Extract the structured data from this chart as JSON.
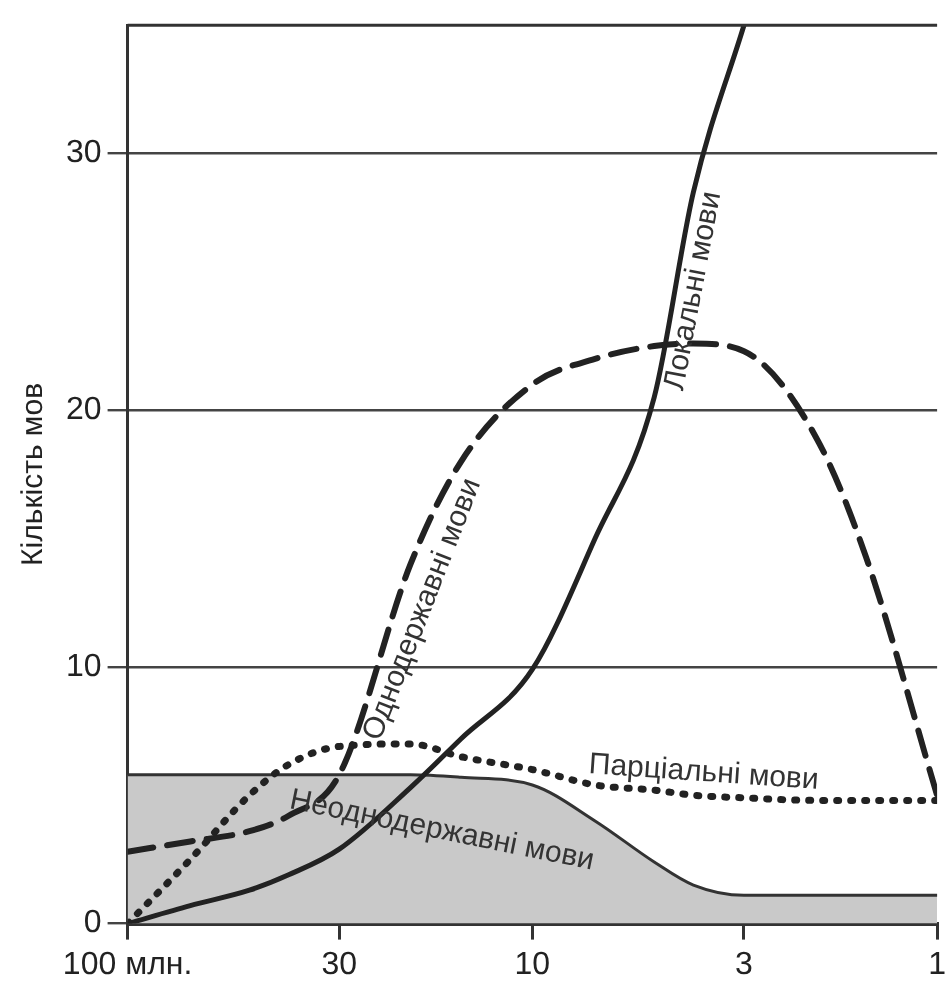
{
  "chart_data": {
    "type": "line",
    "ylabel": "Кількість мов",
    "x": [
      100,
      70,
      50,
      40,
      30,
      20,
      15,
      10,
      7,
      5,
      4,
      3,
      2,
      1.5,
      1
    ],
    "xlim": [
      100,
      1
    ],
    "log": "x",
    "xticks": [
      {
        "value": 100,
        "label": "100 млн."
      },
      30,
      10,
      3,
      1
    ],
    "ylim": [
      0,
      35
    ],
    "yticks": [
      0,
      10,
      20,
      30
    ],
    "grid": "y",
    "legend": false,
    "series": [
      {
        "name": "Неоднодержавні мови",
        "type": "area",
        "color": "#c9c9c9",
        "line_style": "solid",
        "values": [
          5.8,
          5.8,
          5.8,
          5.8,
          5.8,
          5.8,
          5.7,
          5.4,
          4.0,
          2.4,
          1.5,
          1.1,
          1.1,
          1.1,
          1.1
        ]
      },
      {
        "name": "Локальні мови",
        "color": "#222222",
        "line_style": "solid",
        "x": [
          100,
          70,
          50,
          40,
          30,
          20,
          15,
          10,
          7,
          5,
          4,
          3
        ],
        "values": [
          0,
          0.7,
          1.3,
          1.9,
          2.9,
          5.3,
          7.2,
          9.9,
          15,
          20.5,
          28.5,
          35
        ]
      },
      {
        "name": "Однодержавні мови",
        "color": "#222222",
        "line_style": "dashed",
        "values": [
          2.8,
          3.2,
          3.6,
          4.2,
          5.8,
          14,
          18,
          21,
          22,
          22.5,
          22.6,
          22.3,
          19,
          14.3,
          5
        ]
      },
      {
        "name": "Парціальні мови",
        "color": "#222222",
        "line_style": "dotted",
        "values": [
          0,
          2.5,
          5,
          6.2,
          6.9,
          7,
          6.5,
          6,
          5.4,
          5.2,
          5,
          4.9,
          4.8,
          4.8,
          4.8
        ]
      }
    ]
  }
}
